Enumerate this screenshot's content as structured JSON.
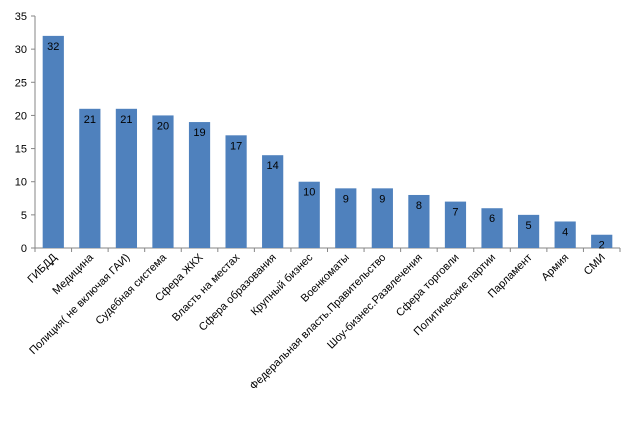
{
  "chart_data": {
    "type": "bar",
    "categories": [
      "ГИБДД",
      "Медицина",
      "Полиция( не включая ГАИ)",
      "Судебная система",
      "Сфера ЖКХ",
      "Власть на местах",
      "Сфера образования",
      "Крупный бизнес",
      "Военкоматы",
      "Федеральная власть.Правительство",
      "Шоу-бизнес.Развлечения",
      "Сфера торговли",
      "Политические партии",
      "Парламент",
      "Армия",
      "СМИ"
    ],
    "values": [
      32,
      21,
      21,
      20,
      19,
      17,
      14,
      10,
      9,
      9,
      8,
      7,
      6,
      5,
      4,
      2
    ],
    "data_labels": [
      "32",
      "21",
      "21",
      "20",
      "19",
      "17",
      "14",
      "10",
      "9",
      "9",
      "8",
      "7",
      "6",
      "5",
      "4",
      "2"
    ],
    "ylim": [
      0,
      35
    ],
    "y_ticks": [
      0,
      5,
      10,
      15,
      20,
      25,
      30,
      35
    ],
    "title": "",
    "xlabel": "",
    "ylabel": "",
    "grid": false,
    "legend": "none",
    "colors": {
      "bar": "#4F81BD",
      "axis": "#868686"
    }
  }
}
